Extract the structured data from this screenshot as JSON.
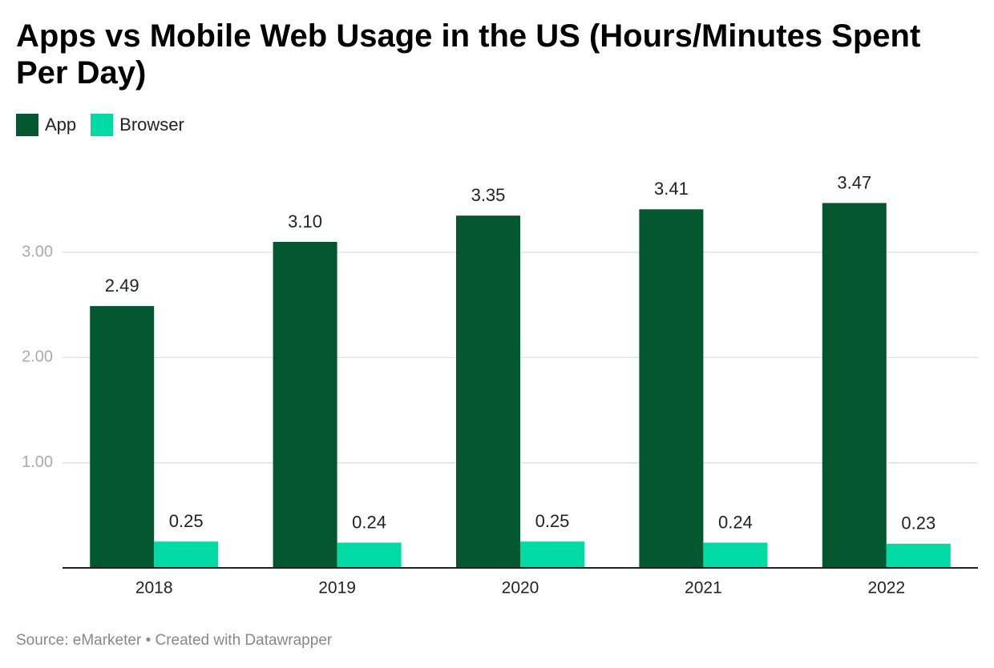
{
  "chart_data": {
    "type": "bar",
    "title": "Apps vs Mobile Web Usage in the US (Hours/Minutes Spent Per Day)",
    "source": "Source: eMarketer • Created with Datawrapper",
    "categories": [
      "2018",
      "2019",
      "2020",
      "2021",
      "2022"
    ],
    "series": [
      {
        "name": "App",
        "color": "#03582f",
        "values": [
          2.49,
          3.1,
          3.35,
          3.41,
          3.47
        ],
        "value_labels": [
          "2.49",
          "3.10",
          "3.35",
          "3.41",
          "3.47"
        ]
      },
      {
        "name": "Browser",
        "color": "#00dba5",
        "values": [
          0.25,
          0.24,
          0.25,
          0.24,
          0.23
        ]
      }
    ],
    "ylim": [
      0,
      3.5
    ],
    "yticks": [
      {
        "value": 1,
        "label": "1.00"
      },
      {
        "value": 2,
        "label": "2.00"
      },
      {
        "value": 3,
        "label": "3.00"
      }
    ],
    "grid": true
  }
}
